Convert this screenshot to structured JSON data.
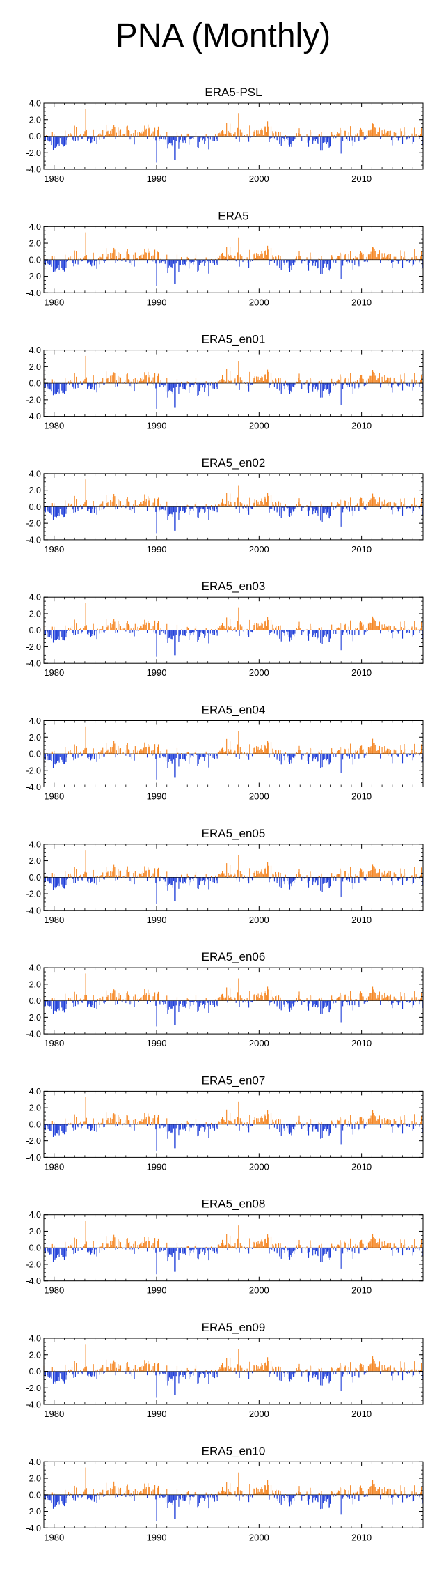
{
  "page_title": "PNA (Monthly)",
  "colors": {
    "positive": "#f5841f",
    "negative": "#1f3ed8",
    "axis": "#000000"
  },
  "series_defaults": {
    "start_year": 1979,
    "months": 444,
    "yticks": [
      4.0,
      2.0,
      0.0,
      -2.0,
      -4.0
    ],
    "ytick_labels": [
      "4.0",
      "2.0",
      "0.0",
      "-2.0",
      "-4.0"
    ],
    "xticks": [
      1980,
      1990,
      2000,
      2010
    ],
    "xtick_labels": [
      "1980",
      "1990",
      "2000",
      "2010"
    ],
    "ylim": [
      -4.0,
      4.0
    ],
    "xlim": [
      1979,
      2016
    ]
  },
  "chart_data": [
    {
      "type": "bar",
      "title": "ERA5-PSL",
      "seed": 1,
      "xlabel": "",
      "ylabel": "",
      "ylim": [
        -4.0,
        4.0
      ],
      "x_start": 1979,
      "n_months": 444,
      "peaks": [
        {
          "x": 1983.1,
          "y": 3.3
        },
        {
          "x": 1998.0,
          "y": 2.8
        },
        {
          "x": 1990.0,
          "y": -3.2
        },
        {
          "x": 1991.8,
          "y": -2.9
        },
        {
          "x": 2008.0,
          "y": -2.1
        }
      ]
    },
    {
      "type": "bar",
      "title": "ERA5",
      "seed": 2,
      "xlabel": "",
      "ylabel": "",
      "ylim": [
        -4.0,
        4.0
      ],
      "x_start": 1979,
      "n_months": 444,
      "peaks": [
        {
          "x": 1983.1,
          "y": 3.3
        },
        {
          "x": 1998.0,
          "y": 2.7
        },
        {
          "x": 1990.0,
          "y": -3.2
        },
        {
          "x": 1991.8,
          "y": -2.9
        },
        {
          "x": 2008.0,
          "y": -2.3
        }
      ]
    },
    {
      "type": "bar",
      "title": "ERA5_en01",
      "seed": 3,
      "xlabel": "",
      "ylabel": "",
      "ylim": [
        -4.0,
        4.0
      ],
      "x_start": 1979,
      "n_months": 444,
      "peaks": [
        {
          "x": 1983.1,
          "y": 3.3
        },
        {
          "x": 1998.0,
          "y": 2.7
        },
        {
          "x": 1990.0,
          "y": -3.1
        },
        {
          "x": 1991.8,
          "y": -2.9
        },
        {
          "x": 2008.0,
          "y": -2.6
        }
      ]
    },
    {
      "type": "bar",
      "title": "ERA5_en02",
      "seed": 4,
      "xlabel": "",
      "ylabel": "",
      "ylim": [
        -4.0,
        4.0
      ],
      "x_start": 1979,
      "n_months": 444,
      "peaks": [
        {
          "x": 1983.1,
          "y": 3.3
        },
        {
          "x": 1998.0,
          "y": 2.6
        },
        {
          "x": 1990.0,
          "y": -3.2
        },
        {
          "x": 1991.8,
          "y": -2.9
        },
        {
          "x": 2008.0,
          "y": -2.4
        }
      ]
    },
    {
      "type": "bar",
      "title": "ERA5_en03",
      "seed": 5,
      "xlabel": "",
      "ylabel": "",
      "ylim": [
        -4.0,
        4.0
      ],
      "x_start": 1979,
      "n_months": 444,
      "peaks": [
        {
          "x": 1983.1,
          "y": 3.3
        },
        {
          "x": 1998.0,
          "y": 2.7
        },
        {
          "x": 1990.0,
          "y": -3.2
        },
        {
          "x": 1991.8,
          "y": -3.0
        },
        {
          "x": 2008.0,
          "y": -2.4
        }
      ]
    },
    {
      "type": "bar",
      "title": "ERA5_en04",
      "seed": 6,
      "xlabel": "",
      "ylabel": "",
      "ylim": [
        -4.0,
        4.0
      ],
      "x_start": 1979,
      "n_months": 444,
      "peaks": [
        {
          "x": 1983.1,
          "y": 3.3
        },
        {
          "x": 1998.0,
          "y": 2.7
        },
        {
          "x": 1990.0,
          "y": -3.1
        },
        {
          "x": 1991.8,
          "y": -2.9
        },
        {
          "x": 2008.0,
          "y": -2.3
        }
      ]
    },
    {
      "type": "bar",
      "title": "ERA5_en05",
      "seed": 7,
      "xlabel": "",
      "ylabel": "",
      "ylim": [
        -4.0,
        4.0
      ],
      "x_start": 1979,
      "n_months": 444,
      "peaks": [
        {
          "x": 1983.1,
          "y": 3.3
        },
        {
          "x": 1998.0,
          "y": 2.7
        },
        {
          "x": 1990.0,
          "y": -3.2
        },
        {
          "x": 1991.8,
          "y": -2.9
        },
        {
          "x": 2008.0,
          "y": -2.4
        }
      ]
    },
    {
      "type": "bar",
      "title": "ERA5_en06",
      "seed": 8,
      "xlabel": "",
      "ylabel": "",
      "ylim": [
        -4.0,
        4.0
      ],
      "x_start": 1979,
      "n_months": 444,
      "peaks": [
        {
          "x": 1983.1,
          "y": 3.3
        },
        {
          "x": 1998.0,
          "y": 2.7
        },
        {
          "x": 1990.0,
          "y": -3.1
        },
        {
          "x": 1991.8,
          "y": -2.9
        },
        {
          "x": 2008.0,
          "y": -2.6
        }
      ]
    },
    {
      "type": "bar",
      "title": "ERA5_en07",
      "seed": 9,
      "xlabel": "",
      "ylabel": "",
      "ylim": [
        -4.0,
        4.0
      ],
      "x_start": 1979,
      "n_months": 444,
      "peaks": [
        {
          "x": 1983.1,
          "y": 3.3
        },
        {
          "x": 1998.0,
          "y": 2.7
        },
        {
          "x": 1990.0,
          "y": -3.2
        },
        {
          "x": 1991.8,
          "y": -2.9
        },
        {
          "x": 2008.0,
          "y": -2.4
        }
      ]
    },
    {
      "type": "bar",
      "title": "ERA5_en08",
      "seed": 10,
      "xlabel": "",
      "ylabel": "",
      "ylim": [
        -4.0,
        4.0
      ],
      "x_start": 1979,
      "n_months": 444,
      "peaks": [
        {
          "x": 1983.1,
          "y": 3.3
        },
        {
          "x": 1998.0,
          "y": 2.7
        },
        {
          "x": 1990.0,
          "y": -3.2
        },
        {
          "x": 1991.8,
          "y": -2.9
        },
        {
          "x": 2008.0,
          "y": -2.5
        }
      ]
    },
    {
      "type": "bar",
      "title": "ERA5_en09",
      "seed": 11,
      "xlabel": "",
      "ylabel": "",
      "ylim": [
        -4.0,
        4.0
      ],
      "x_start": 1979,
      "n_months": 444,
      "peaks": [
        {
          "x": 1983.1,
          "y": 3.3
        },
        {
          "x": 1998.0,
          "y": 2.7
        },
        {
          "x": 1990.0,
          "y": -3.2
        },
        {
          "x": 1991.8,
          "y": -2.9
        },
        {
          "x": 2008.0,
          "y": -2.4
        }
      ]
    },
    {
      "type": "bar",
      "title": "ERA5_en10",
      "seed": 12,
      "xlabel": "",
      "ylabel": "",
      "ylim": [
        -4.0,
        4.0
      ],
      "x_start": 1979,
      "n_months": 444,
      "peaks": [
        {
          "x": 1983.1,
          "y": 3.3
        },
        {
          "x": 1998.0,
          "y": 2.7
        },
        {
          "x": 1990.0,
          "y": -3.2
        },
        {
          "x": 1991.8,
          "y": -2.9
        },
        {
          "x": 2008.0,
          "y": -2.4
        }
      ]
    }
  ]
}
